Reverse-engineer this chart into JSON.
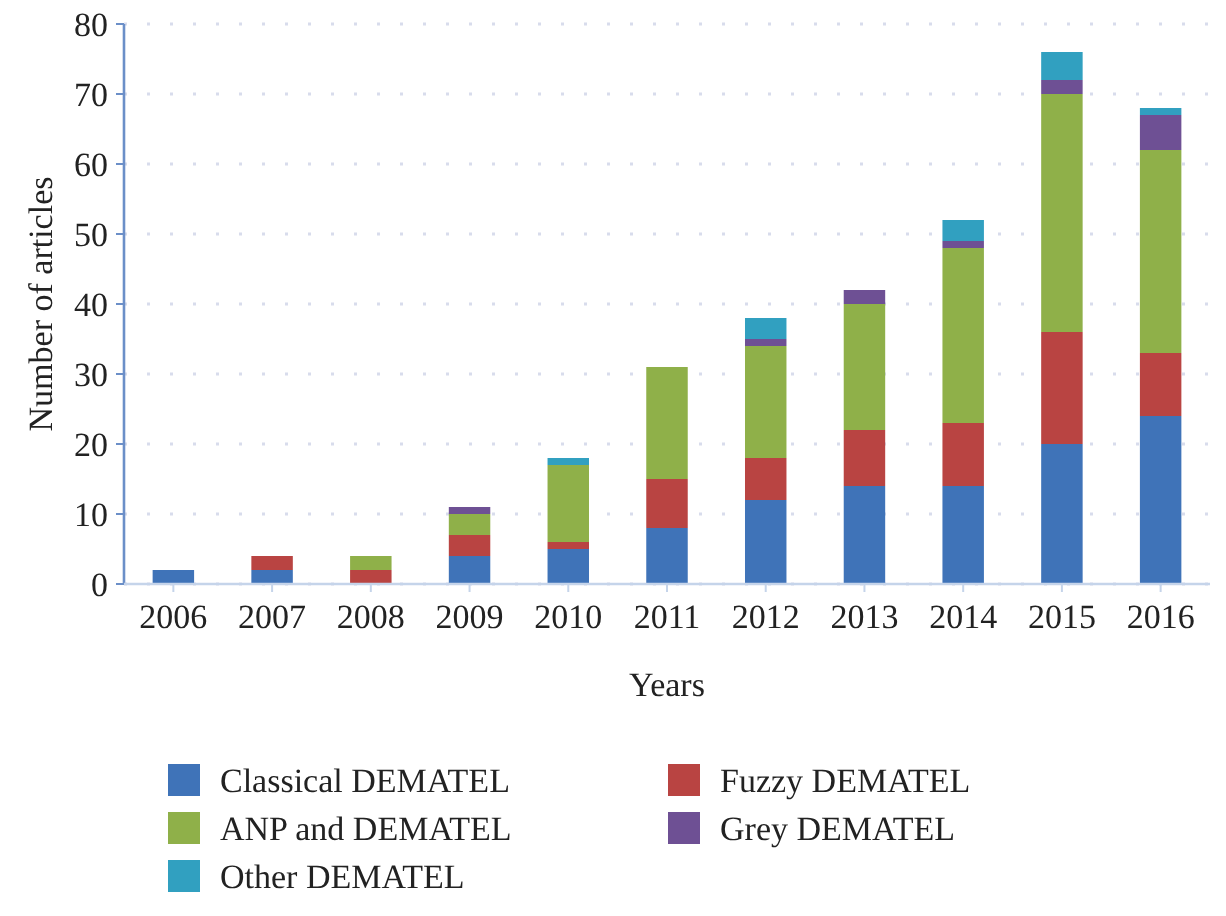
{
  "chart_data": {
    "type": "bar",
    "stacked": true,
    "xlabel": "Years",
    "ylabel": "Number of articles",
    "categories": [
      "2006",
      "2007",
      "2008",
      "2009",
      "2010",
      "2011",
      "2012",
      "2013",
      "2014",
      "2015",
      "2016"
    ],
    "series": [
      {
        "name": "Classical DEMATEL",
        "color": "#3f73b8",
        "values": [
          2,
          2,
          0,
          4,
          5,
          8,
          12,
          14,
          14,
          20,
          24
        ]
      },
      {
        "name": "Fuzzy DEMATEL",
        "color": "#b94442",
        "values": [
          0,
          2,
          2,
          3,
          1,
          7,
          6,
          8,
          9,
          16,
          9
        ]
      },
      {
        "name": "ANP and DEMATEL",
        "color": "#8fb049",
        "values": [
          0,
          0,
          2,
          3,
          11,
          16,
          16,
          18,
          25,
          34,
          29
        ]
      },
      {
        "name": "Grey DEMATEL",
        "color": "#6e5094",
        "values": [
          0,
          0,
          0,
          1,
          0,
          0,
          1,
          2,
          1,
          2,
          5
        ]
      },
      {
        "name": "Other DEMATEL",
        "color": "#31a0c0",
        "values": [
          0,
          0,
          0,
          0,
          1,
          0,
          3,
          0,
          3,
          4,
          1
        ]
      }
    ],
    "ylim": [
      0,
      80
    ],
    "yticks": [
      0,
      10,
      20,
      30,
      40,
      50,
      60,
      70,
      80
    ],
    "grid": "y",
    "legend": "bottom"
  }
}
